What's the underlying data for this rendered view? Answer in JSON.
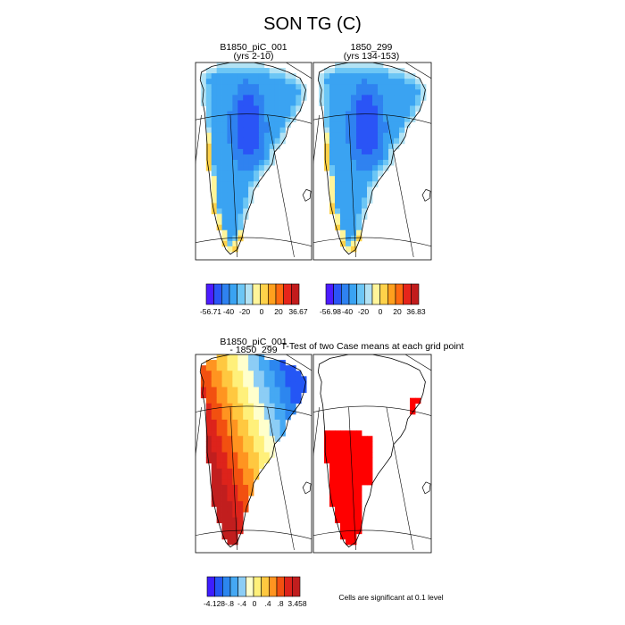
{
  "figure": {
    "title": "SON TG (C)",
    "footnote": "Cells are significant at 0.1 level"
  },
  "colors": {
    "fill_palette": [
      "#4c1bff",
      "#2a54f6",
      "#2f82f0",
      "#3aa3f2",
      "#6cc6f5",
      "#b2e2f4",
      "#ffffff",
      "#fff59a",
      "#ffd24a",
      "#ffa01e",
      "#ff6a10",
      "#e6251b",
      "#c21c1c"
    ],
    "diff_palette": [
      "#3d1dff",
      "#2456f5",
      "#2c86ef",
      "#45a8f3",
      "#8ccdf5",
      "#ffffcc",
      "#fff07a",
      "#ffc840",
      "#ff9420",
      "#f25010",
      "#dd231b",
      "#c11e1e"
    ],
    "ttest_fill": "#ff0000",
    "map_outline": "#000000",
    "grid_lines": "#000000"
  },
  "chart_data": [
    {
      "type": "heatmap",
      "panel": "top-left",
      "title": "B1850_piC_001",
      "subtitle": "(yrs 2-10)",
      "colorbar": {
        "tick_labels": [
          "-56.71",
          "-40",
          "-20",
          "0",
          "20",
          "36.67"
        ],
        "range": [
          -56.71,
          36.67
        ]
      },
      "region": "Greenland",
      "field_pattern": {
        "interior_min": -56.71,
        "coast_max": 36.67
      }
    },
    {
      "type": "heatmap",
      "panel": "top-right",
      "title": "1850_299",
      "subtitle": "(yrs 134-153)",
      "colorbar": {
        "tick_labels": [
          "-56.98",
          "-40",
          "-20",
          "0",
          "20",
          "36.83"
        ],
        "range": [
          -56.98,
          36.83
        ]
      },
      "region": "Greenland",
      "field_pattern": {
        "interior_min": -56.98,
        "coast_max": 36.83
      }
    },
    {
      "type": "heatmap",
      "panel": "bottom-left",
      "title": "B1850_piC_001",
      "subtitle": "- 1850_299",
      "colorbar": {
        "tick_labels": [
          "-4.128",
          "-.8",
          "-.4",
          "0",
          ".4",
          ".8",
          "3.458"
        ],
        "range": [
          -4.128,
          3.458
        ]
      },
      "region": "Greenland"
    },
    {
      "type": "heatmap",
      "panel": "bottom-right",
      "title": "T-Test of two Case means at each grid point",
      "region": "Greenland",
      "significance_level": 0.1
    }
  ]
}
